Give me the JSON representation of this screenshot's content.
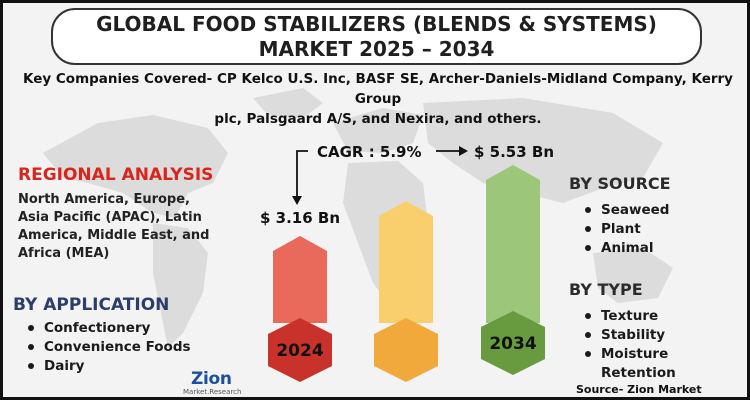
{
  "title": {
    "line1": "GLOBAL FOOD STABILIZERS (BLENDS & SYSTEMS)",
    "line2": "MARKET 2025 – 2034"
  },
  "companies": {
    "line1": "Key Companies Covered- CP Kelco U.S. Inc, BASF SE, Archer-Daniels-Midland Company, Kerry Group",
    "line2": "plc, Palsgaard A/S, and Nexira, and others."
  },
  "regional": {
    "heading": "REGIONAL ANALYSIS",
    "lines": [
      "North America, Europe,",
      "Asia Pacific (APAC), Latin",
      "America, Middle East, and",
      "Africa (MEA)"
    ]
  },
  "application": {
    "heading": "BY APPLICATION",
    "items": [
      "Confectionery",
      "Convenience Foods",
      "Dairy"
    ]
  },
  "source_segment": {
    "heading": "BY SOURCE",
    "items": [
      "Seaweed",
      "Plant",
      "Animal"
    ]
  },
  "type_segment": {
    "heading": "BY TYPE",
    "items": [
      "Texture",
      "Stability",
      "Moisture Retention"
    ]
  },
  "stats": {
    "cagr": "CAGR : 5.9%",
    "start_value": "$ 3.16 Bn",
    "end_value": "$ 5.53 Bn"
  },
  "bars": {
    "start_year": "2024",
    "end_year": "2034",
    "colors": {
      "red_bar": "#e96a5a",
      "red_hex": "#c9322b",
      "yellow_bar": "#f9cf6e",
      "yellow_hex": "#f0a93a",
      "green_bar": "#9cc77a",
      "green_hex": "#689a3f"
    }
  },
  "footer": {
    "source": "Source- Zion Market Research",
    "logo_word": "Zion",
    "logo_sub": "Market.Research"
  }
}
